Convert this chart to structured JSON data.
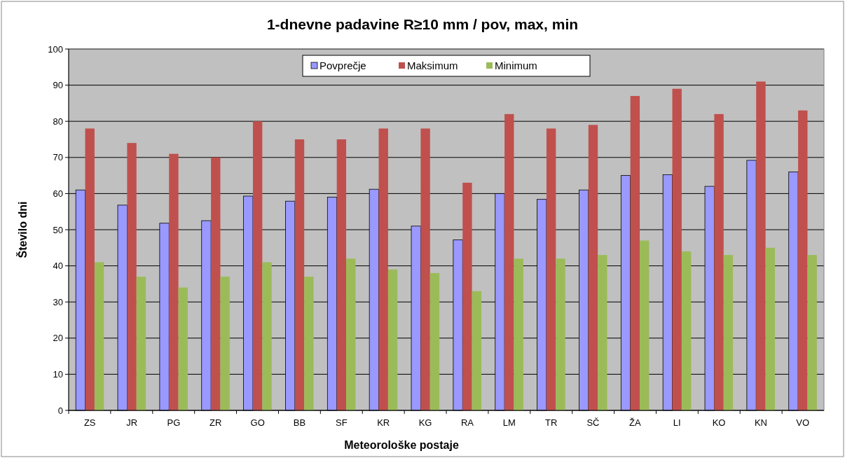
{
  "chart_data": {
    "type": "bar",
    "title": "1-dnevne padavine R≥10 mm / pov, max, min",
    "xlabel": "Meteorološke postaje",
    "ylabel": "Število dni",
    "categories": [
      "ZS",
      "JR",
      "PG",
      "ZR",
      "GO",
      "BB",
      "SF",
      "KR",
      "KG",
      "RA",
      "LM",
      "TR",
      "SČ",
      "ŽA",
      "LI",
      "KO",
      "KN",
      "VO"
    ],
    "series": [
      {
        "name": "Povprečje",
        "color": "#9999ff",
        "values": [
          61,
          56.8,
          51.8,
          52.5,
          59.3,
          57.9,
          59,
          61.2,
          51,
          47.2,
          60,
          58.4,
          61,
          65,
          65.2,
          62,
          69.2,
          66
        ]
      },
      {
        "name": "Maksimum",
        "color": "#c0504d",
        "values": [
          78,
          74,
          71,
          70,
          80,
          75,
          75,
          78,
          78,
          63,
          82,
          78,
          79,
          87,
          89,
          82,
          91,
          83
        ]
      },
      {
        "name": "Minimum",
        "color": "#9bbb59",
        "values": [
          41,
          37,
          34,
          37,
          41,
          37,
          42,
          39,
          38,
          33,
          42,
          42,
          43,
          47,
          44,
          43,
          45,
          43
        ]
      }
    ],
    "ylim": [
      0,
      100
    ],
    "yticks": [
      0,
      10,
      20,
      30,
      40,
      50,
      60,
      70,
      80,
      90,
      100
    ],
    "grid": "y",
    "legend": "top"
  }
}
